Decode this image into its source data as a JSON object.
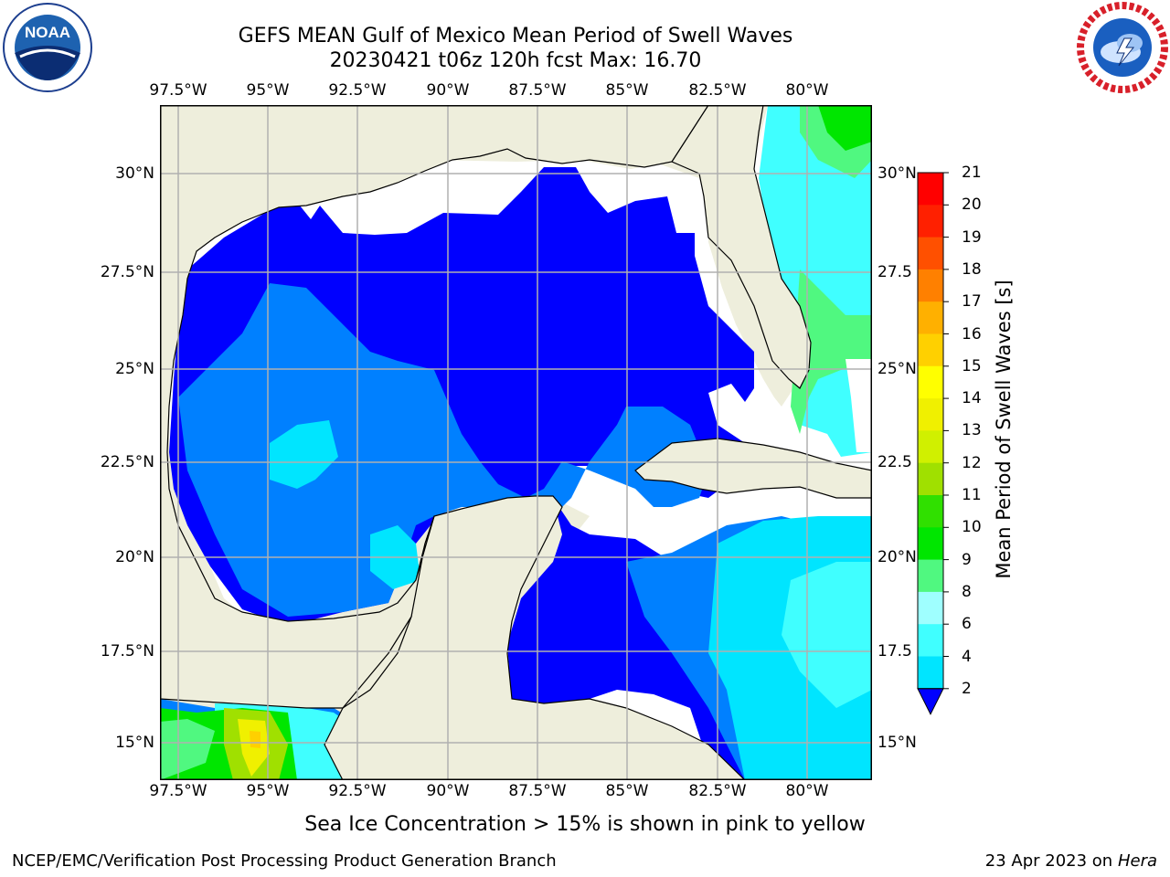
{
  "header": {
    "title_line1": "GEFS MEAN Gulf of Mexico Mean Period of Swell Waves",
    "title_line2": "20230421 t06z 120h fcst   Max: 16.70"
  },
  "logos": {
    "left": {
      "name": "noaa-logo",
      "text": "NOAA",
      "ring_text": "NATIONAL OCEANIC AND ATMOSPHERIC ADMINISTRATION · U.S. DEPARTMENT OF COMMERCE"
    },
    "right": {
      "name": "nws-logo",
      "ring_text": "NATIONAL WEATHER SERVICE"
    }
  },
  "map": {
    "region": "Gulf of Mexico",
    "lon_labels": [
      "97.5°W",
      "95°W",
      "92.5°W",
      "90°W",
      "87.5°W",
      "85°W",
      "82.5°W",
      "80°W"
    ],
    "lat_labels_left": [
      "30°N",
      "27.5°N",
      "25°N",
      "22.5°N",
      "20°N",
      "17.5°N",
      "15°N"
    ],
    "lat_labels_right": [
      "30°N",
      "27.5",
      "25°N",
      "22.5",
      "20°N",
      "17.5",
      "15°N"
    ],
    "colors": {
      "land": "#eeeedc",
      "no_data": "#ffffff",
      "gridline": "#b0b0b0"
    }
  },
  "colorbar": {
    "label": "Mean Period of Swell Waves [s]",
    "ticks": [
      "2",
      "4",
      "6",
      "8",
      "9",
      "10",
      "11",
      "12",
      "13",
      "14",
      "15",
      "16",
      "17",
      "18",
      "19",
      "20",
      "21"
    ],
    "colors": [
      "#0000ff",
      "#0080ff",
      "#00e5ff",
      "#40ffff",
      "#9fffff",
      "#50f880",
      "#00e600",
      "#30e000",
      "#a0e000",
      "#d0f000",
      "#f0f000",
      "#ffff00",
      "#ffd000",
      "#ffb000",
      "#ff8000",
      "#ff5000",
      "#ff2000",
      "#ff0000"
    ],
    "extend": "min"
  },
  "caption": "Sea Ice Concentration > 15% is shown in pink to yellow",
  "footer": {
    "left": "NCEP/EMC/Verification Post Processing Product Generation Branch",
    "date": "23 Apr 2023 on ",
    "machine": "Hera"
  }
}
